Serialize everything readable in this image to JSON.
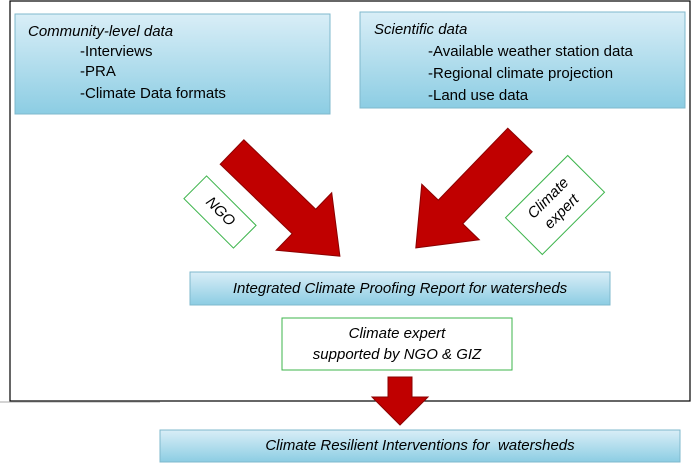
{
  "community": {
    "title": "Community-level data",
    "items": [
      "-Interviews",
      "-PRA",
      "-Climate Data formats"
    ]
  },
  "scientific": {
    "title": "Scientific data",
    "items": [
      "-Available weather station data",
      "-Regional climate projection",
      "-Land use data"
    ]
  },
  "labels": {
    "left": "NGO",
    "right": [
      "Climate",
      "expert"
    ]
  },
  "report": "Integrated Climate Proofing Report for watersheds",
  "support": [
    "Climate expert",
    "supported by NGO & GIZ"
  ],
  "outcome": "Climate Resilient Interventions for  watersheds"
}
